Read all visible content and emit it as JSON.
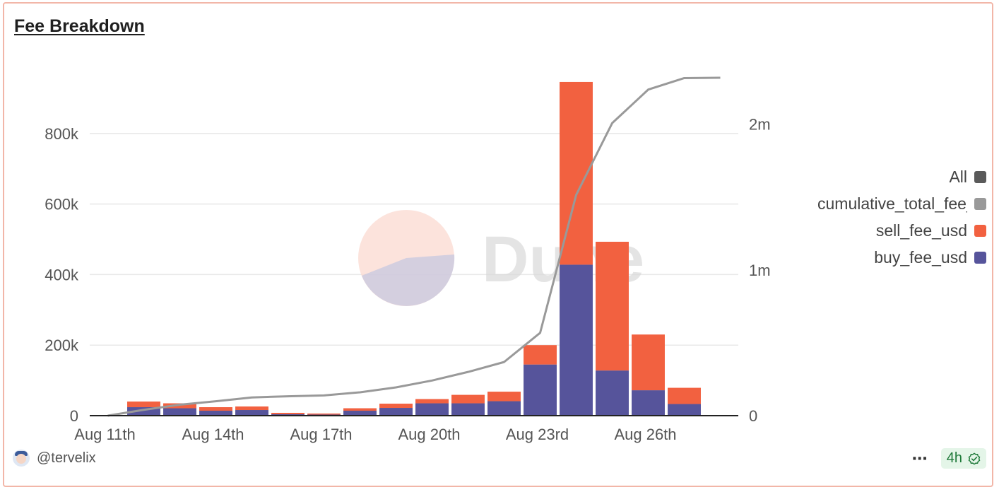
{
  "title": "Fee Breakdown",
  "author": "@tervelix",
  "more_label": "⋯",
  "refresh_label": "4h",
  "watermark_text": "Dune",
  "colors": {
    "sell": "#f26140",
    "buy": "#56549b",
    "cumulative": "#999999",
    "all": "#5a5a5a",
    "grid": "#e8e8e8"
  },
  "legend": [
    {
      "label": "All",
      "color": "#5a5a5a"
    },
    {
      "label": "cumulative_total_fee_usd",
      "color": "#999999"
    },
    {
      "label": "sell_fee_usd",
      "color": "#f26140"
    },
    {
      "label": "buy_fee_usd",
      "color": "#56549b"
    }
  ],
  "chart_data": {
    "type": "bar",
    "stacked": true,
    "categories": [
      "Aug 11th",
      "Aug 12th",
      "Aug 13th",
      "Aug 14th",
      "Aug 15th",
      "Aug 16th",
      "Aug 17th",
      "Aug 18th",
      "Aug 19th",
      "Aug 20th",
      "Aug 21st",
      "Aug 22nd",
      "Aug 23rd",
      "Aug 24th",
      "Aug 25th",
      "Aug 26th",
      "Aug 27th",
      "Aug 28th"
    ],
    "x_tick_labels": [
      "Aug 11th",
      "Aug 14th",
      "Aug 17th",
      "Aug 20th",
      "Aug 23rd",
      "Aug 26th"
    ],
    "series": [
      {
        "name": "buy_fee_usd",
        "axis": "left",
        "values": [
          0,
          24000,
          21000,
          14000,
          16000,
          4000,
          3000,
          14000,
          22000,
          35000,
          35000,
          41000,
          145000,
          428000,
          128000,
          72000,
          33000,
          1000
        ]
      },
      {
        "name": "sell_fee_usd",
        "axis": "left",
        "values": [
          0,
          16000,
          14000,
          10000,
          10000,
          4000,
          3000,
          7000,
          12000,
          12000,
          24000,
          27000,
          55000,
          518000,
          365000,
          158000,
          46000,
          1000
        ]
      },
      {
        "name": "cumulative_total_fee_usd",
        "type": "line",
        "axis": "right",
        "values": [
          0,
          40000,
          75000,
          99000,
          125000,
          133000,
          139000,
          160000,
          194000,
          241000,
          300000,
          368000,
          568000,
          1514000,
          2007000,
          2237000,
          2316000,
          2318000
        ]
      }
    ],
    "y_left": {
      "ticks": [
        0,
        200000,
        400000,
        600000,
        800000
      ],
      "tick_labels": [
        "0",
        "200k",
        "400k",
        "600k",
        "800k"
      ],
      "lim": [
        0,
        1000000
      ]
    },
    "y_right": {
      "ticks": [
        0,
        1000000,
        2000000
      ],
      "tick_labels": [
        "0",
        "1m",
        "2m"
      ],
      "lim": [
        0,
        2420000
      ]
    },
    "grid": true,
    "legend_position": "right"
  }
}
